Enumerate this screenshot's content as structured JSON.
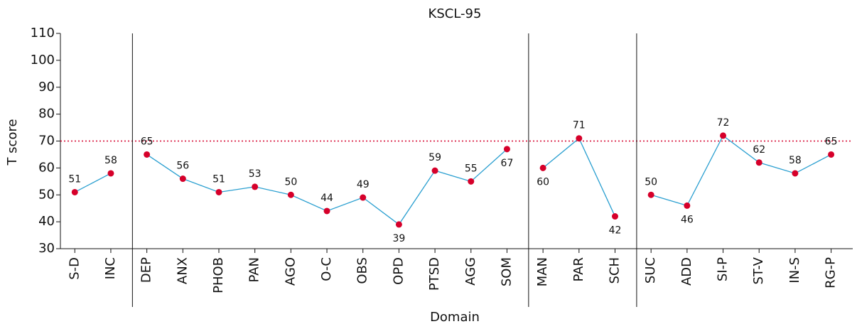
{
  "chart_data": {
    "type": "line",
    "title": "KSCL-95",
    "x_label": "Domain",
    "y_label": "T score",
    "groups": [
      {
        "categories": [
          "S-D",
          "INC"
        ],
        "values": [
          51,
          58
        ]
      },
      {
        "categories": [
          "DEP",
          "ANX",
          "PHOB",
          "PAN",
          "AGO",
          "O-C",
          "OBS",
          "OPD",
          "PTSD",
          "AGG",
          "SOM"
        ],
        "values": [
          65,
          56,
          51,
          53,
          50,
          44,
          49,
          39,
          59,
          55,
          67
        ]
      },
      {
        "categories": [
          "MAN",
          "PAR",
          "SCH"
        ],
        "values": [
          60,
          71,
          42
        ]
      },
      {
        "categories": [
          "SUC",
          "ADD",
          "SI-P",
          "ST-V",
          "IN-S",
          "RG-P"
        ],
        "values": [
          50,
          46,
          72,
          62,
          58,
          65
        ]
      }
    ],
    "line_color": "#2a9fd0",
    "marker_color": "#d6002a",
    "reference_line": 70,
    "reference_color": "#d6002a",
    "ylim": [
      30,
      110
    ],
    "yticks": [
      30,
      40,
      50,
      60,
      70,
      80,
      90,
      100,
      110
    ]
  }
}
